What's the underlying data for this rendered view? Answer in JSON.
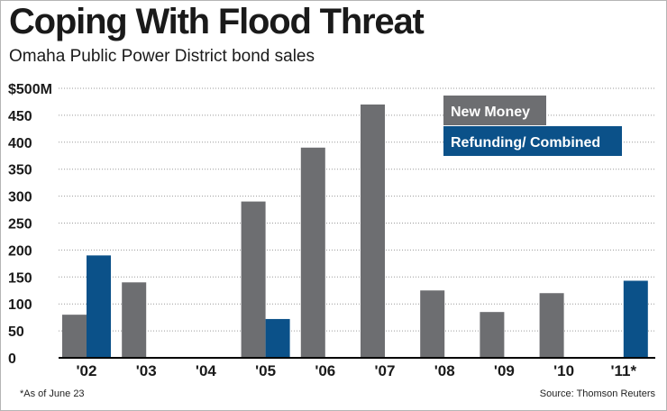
{
  "header": {
    "title": "Coping With Flood Threat",
    "subtitle": "Omaha Public Power District bond sales"
  },
  "footer": {
    "footnote": "*As of June 23",
    "source": "Source: Thomson Reuters"
  },
  "chart_data": {
    "type": "bar",
    "title": "Coping With Flood Threat",
    "subtitle": "Omaha Public Power District bond sales",
    "xlabel": "",
    "ylabel": "",
    "ylim": [
      0,
      500
    ],
    "yticks": [
      0,
      50,
      100,
      150,
      200,
      250,
      300,
      350,
      400,
      450,
      500
    ],
    "ytick_labels": [
      "0",
      "50",
      "100",
      "150",
      "200",
      "250",
      "300",
      "350",
      "400",
      "450",
      "$500M"
    ],
    "grid": "horizontal dotted",
    "legend_position": "top-right",
    "categories": [
      "'02",
      "'03",
      "'04",
      "'05",
      "'06",
      "'07",
      "'08",
      "'09",
      "'10",
      "'11*"
    ],
    "series": [
      {
        "name": "New Money",
        "color": "#6d6e71",
        "values": [
          80,
          140,
          0,
          290,
          390,
          470,
          125,
          85,
          120,
          0
        ]
      },
      {
        "name": "Refunding/ Combined",
        "color": "#0b5189",
        "values": [
          190,
          0,
          0,
          72,
          0,
          0,
          0,
          0,
          0,
          143
        ]
      }
    ]
  }
}
